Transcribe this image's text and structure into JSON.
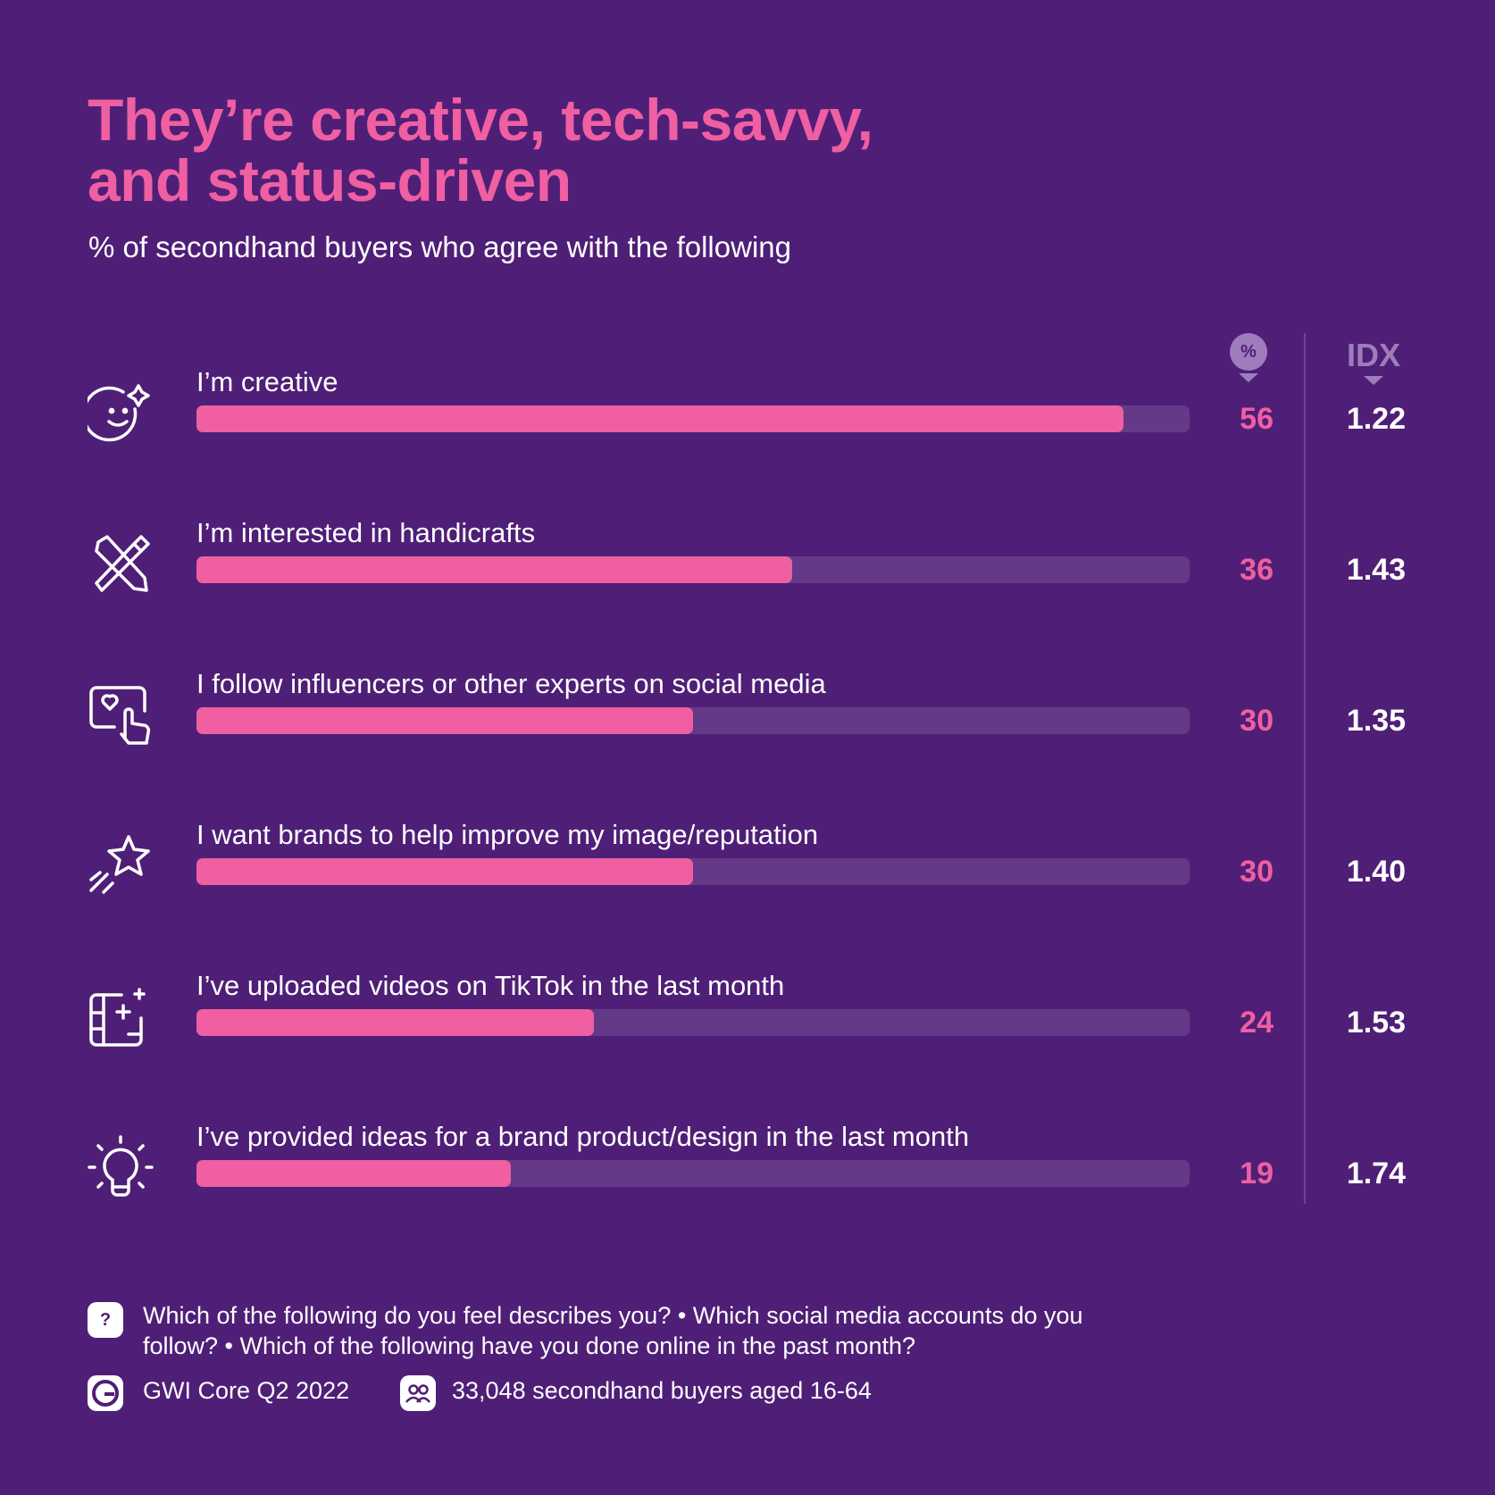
{
  "title": {
    "line1": "They’re creative, tech-savvy,",
    "line2": "and status-driven"
  },
  "subtitle": "% of secondhand buyers who agree with the following",
  "columns": {
    "pct": "%",
    "idx": "IDX"
  },
  "chart_data": {
    "type": "bar",
    "orientation": "horizontal",
    "title": "They’re creative, tech-savvy, and status-driven",
    "subtitle": "% of secondhand buyers who agree with the following",
    "xlim": [
      0,
      60
    ],
    "categories": [
      "I’m creative",
      "I’m interested in handicrafts",
      "I follow influencers or other experts on social media",
      "I want brands to help improve my image/reputation",
      "I’ve uploaded videos on TikTok in the last month",
      "I’ve provided ideas for a brand product/design in the last month"
    ],
    "series": [
      {
        "name": "%",
        "values": [
          56,
          36,
          30,
          30,
          24,
          19
        ]
      },
      {
        "name": "IDX",
        "values": [
          "1.22",
          "1.43",
          "1.35",
          "1.40",
          "1.53",
          "1.74"
        ]
      }
    ]
  },
  "icons": [
    "smiley-sparkle-icon",
    "pencil-brush-icon",
    "heart-screen-tap-icon",
    "shooting-star-icon",
    "video-frame-sparkle-icon",
    "lightbulb-icon"
  ],
  "colors": {
    "background": "#4F1F77",
    "accent": "#EF5FA1",
    "track": "#643A88",
    "muted": "#9D7DBB"
  },
  "footer": {
    "question_icon": "?",
    "question": "Which of the following do you feel describes you? • Which social media accounts do you follow? • Which of the following have you done online in the past month?",
    "source": "GWI Core Q2 2022",
    "sample": "33,048 secondhand buyers aged 16-64"
  }
}
